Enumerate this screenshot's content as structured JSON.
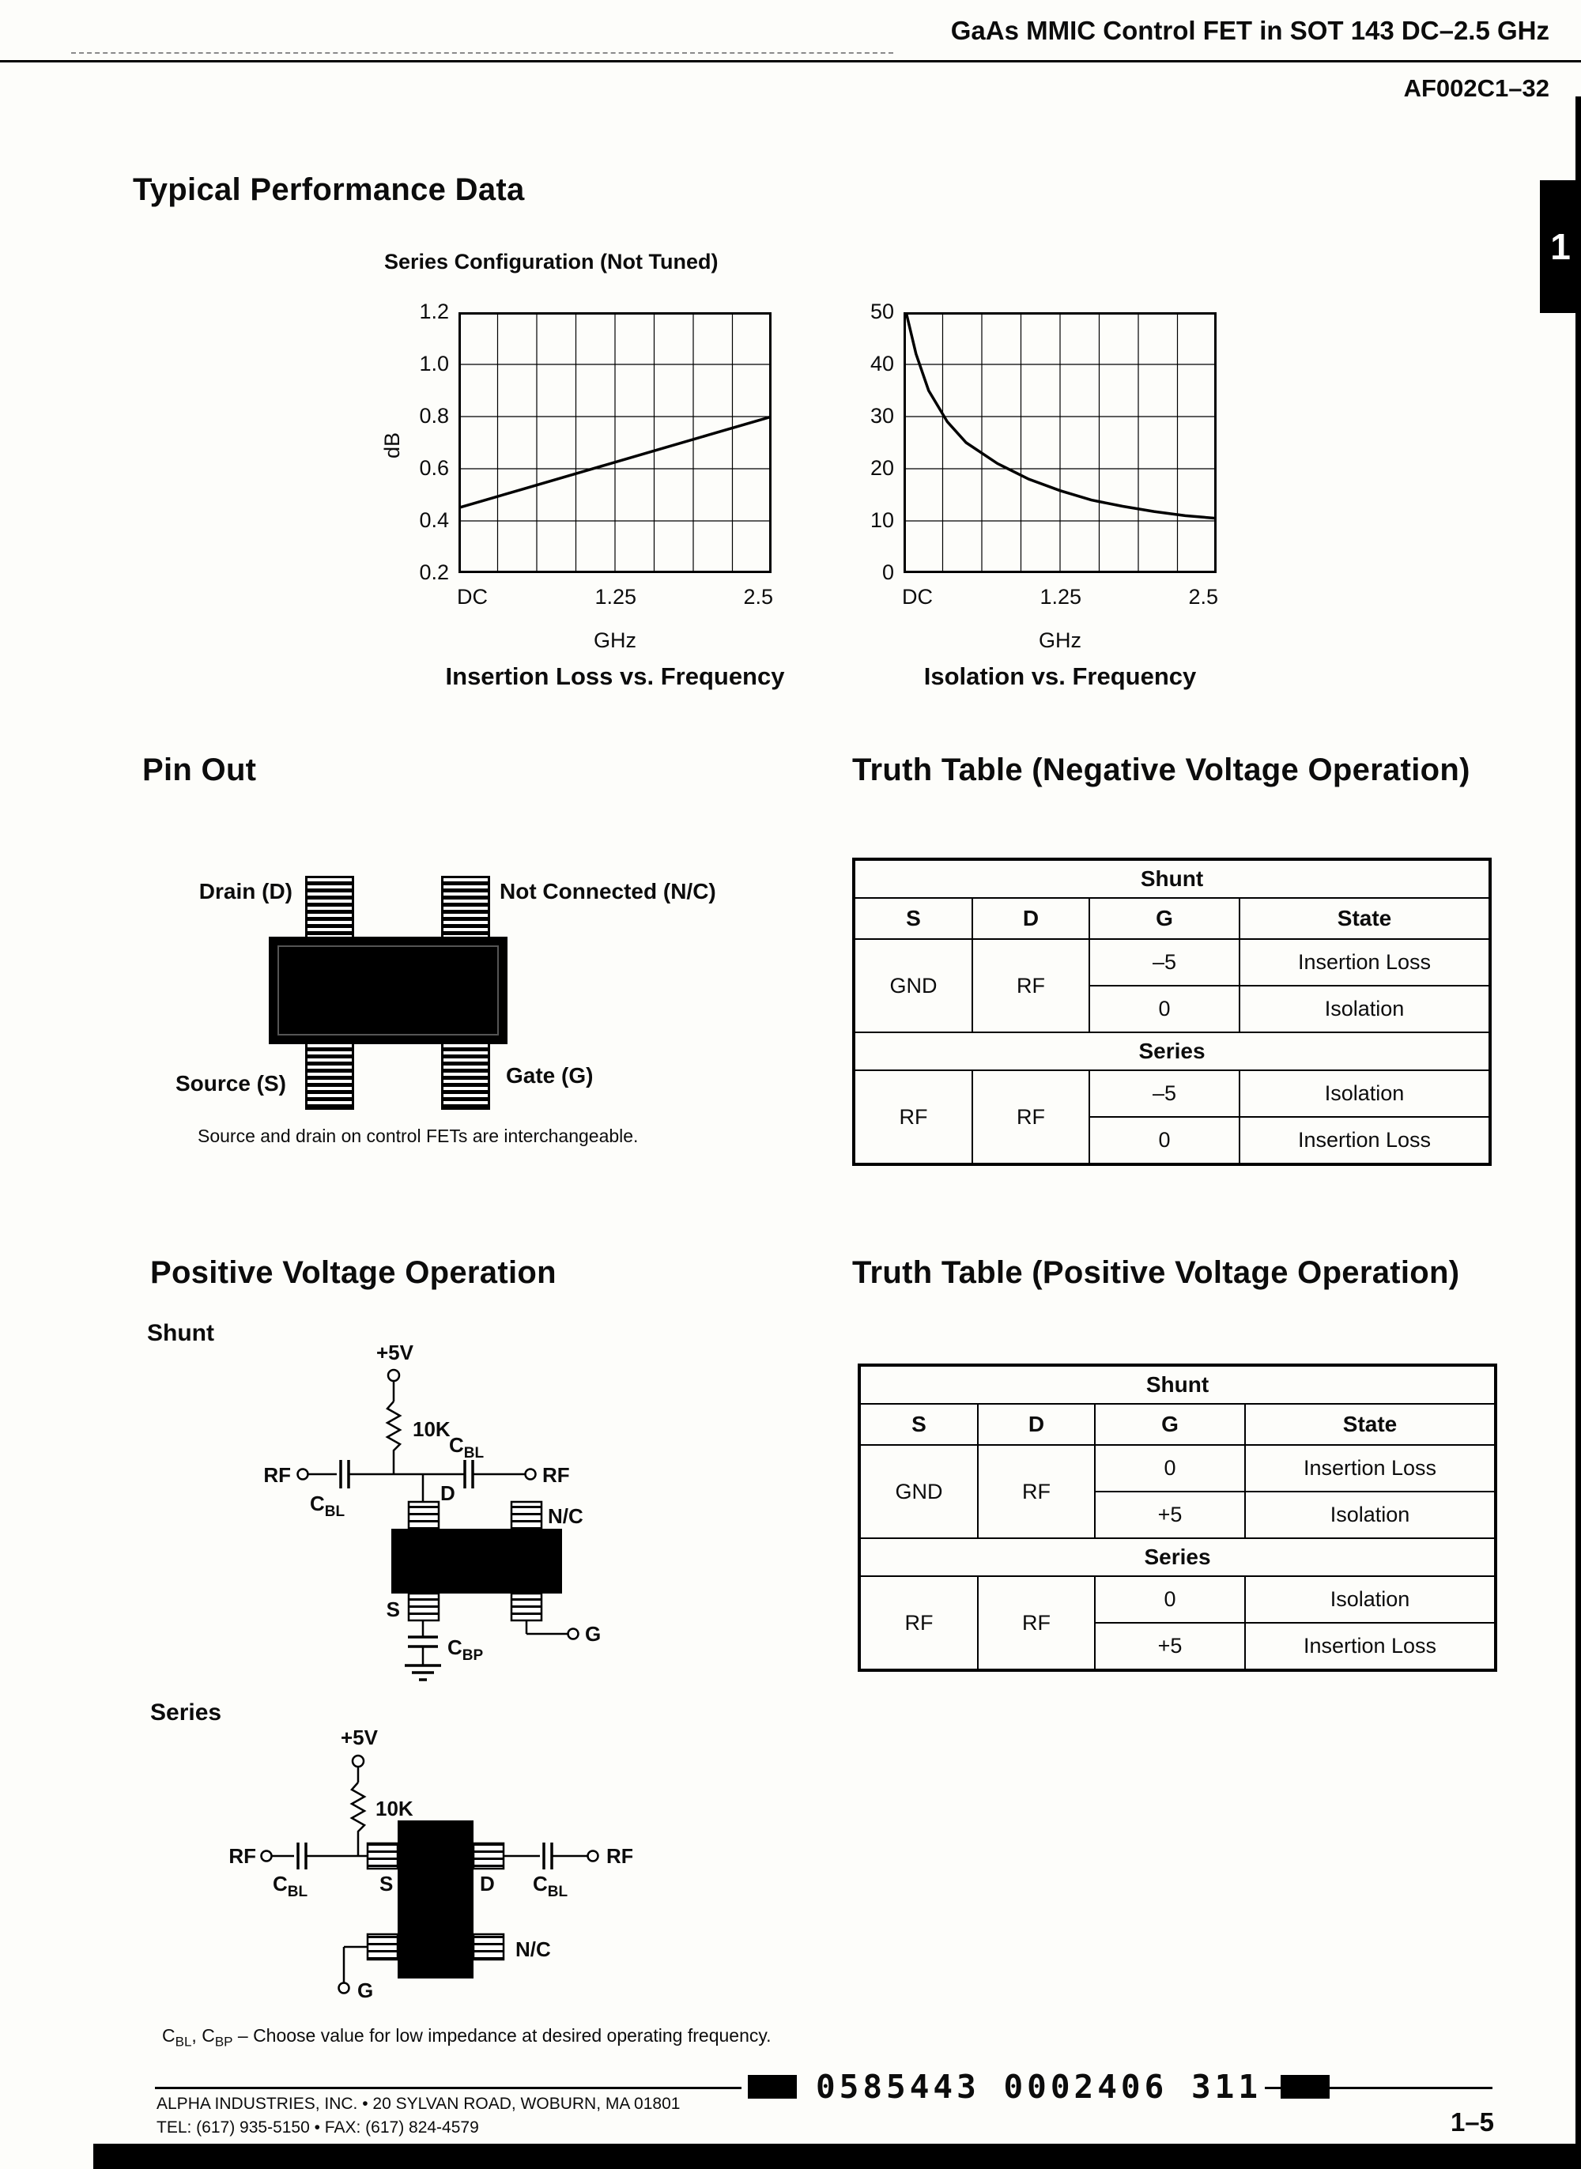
{
  "header": {
    "title": "GaAs MMIC Control FET in SOT 143 DC–2.5 GHz",
    "part_number": "AF002C1–32",
    "side_tab": "1"
  },
  "performance": {
    "title": "Typical Performance Data",
    "subtitle": "Series Configuration (Not Tuned)"
  },
  "chart_data": [
    {
      "type": "line",
      "title": "Insertion Loss vs. Frequency",
      "xlabel": "GHz",
      "ylabel": "dB",
      "x_ticks": [
        "DC",
        "1.25",
        "2.5"
      ],
      "y_ticks": [
        "1.2",
        "1.0",
        "0.8",
        "0.6",
        "0.4",
        "0.2"
      ],
      "xlim": [
        0,
        2.5
      ],
      "ylim": [
        0.2,
        1.2
      ],
      "grid_cols": 8,
      "grid_rows": 5,
      "grid": true,
      "x": [
        0,
        0.5,
        1.0,
        1.5,
        2.0,
        2.5
      ],
      "y": [
        0.45,
        0.52,
        0.59,
        0.66,
        0.73,
        0.8
      ]
    },
    {
      "type": "line",
      "title": "Isolation vs. Frequency",
      "xlabel": "GHz",
      "ylabel": "",
      "x_ticks": [
        "DC",
        "1.25",
        "2.5"
      ],
      "y_ticks": [
        "50",
        "40",
        "30",
        "20",
        "10",
        "0"
      ],
      "xlim": [
        0,
        2.5
      ],
      "ylim": [
        0,
        50
      ],
      "grid_cols": 8,
      "grid_rows": 5,
      "grid": true,
      "x": [
        0.02,
        0.1,
        0.2,
        0.35,
        0.5,
        0.75,
        1.0,
        1.25,
        1.5,
        1.75,
        2.0,
        2.25,
        2.5
      ],
      "y": [
        50,
        42,
        35,
        29,
        25,
        21,
        18,
        15.8,
        14,
        12.8,
        11.8,
        11,
        10.5
      ]
    }
  ],
  "pinout": {
    "title": "Pin Out",
    "drain": "Drain (D)",
    "nc": "Not Connected (N/C)",
    "source": "Source (S)",
    "gate": "Gate (G)",
    "note": "Source and drain on control FETs are interchangeable."
  },
  "truth_negative": {
    "title": "Truth Table (Negative Voltage Operation)",
    "columns": [
      "S",
      "D",
      "G",
      "State"
    ],
    "sections": [
      {
        "label": "Shunt",
        "s": "GND",
        "d": "RF",
        "rows": [
          {
            "g": "–5",
            "state": "Insertion Loss"
          },
          {
            "g": "0",
            "state": "Isolation"
          }
        ]
      },
      {
        "label": "Series",
        "s": "RF",
        "d": "RF",
        "rows": [
          {
            "g": "–5",
            "state": "Isolation"
          },
          {
            "g": "0",
            "state": "Insertion Loss"
          }
        ]
      }
    ]
  },
  "truth_positive": {
    "title": "Truth Table (Positive Voltage Operation)",
    "columns": [
      "S",
      "D",
      "G",
      "State"
    ],
    "sections": [
      {
        "label": "Shunt",
        "s": "GND",
        "d": "RF",
        "rows": [
          {
            "g": "0",
            "state": "Insertion Loss"
          },
          {
            "g": "+5",
            "state": "Isolation"
          }
        ]
      },
      {
        "label": "Series",
        "s": "RF",
        "d": "RF",
        "rows": [
          {
            "g": "0",
            "state": "Isolation"
          },
          {
            "g": "+5",
            "state": "Insertion Loss"
          }
        ]
      }
    ]
  },
  "positive_op": {
    "title": "Positive Voltage Operation",
    "shunt_label": "Shunt",
    "series_label": "Series",
    "note": {
      "c1": "C",
      "s1": "BL",
      "c2": ", C",
      "s2": "BP",
      "rest": " – Choose value for low impedance at desired operating frequency."
    }
  },
  "circuit_labels": {
    "supply": "+5V",
    "resistor": "10K",
    "rf": "RF",
    "c": "C",
    "bl": "BL",
    "bp": "BP",
    "d": "D",
    "nc": "N/C",
    "s": "S",
    "g": "G"
  },
  "footer": {
    "address": "ALPHA INDUSTRIES, INC. • 20 SYLVAN ROAD, WOBURN, MA 01801",
    "phone": "TEL: (617) 935-5150 • FAX: (617) 824-4579",
    "barcode_text": "0585443 0002406 311",
    "page_number": "1–5"
  }
}
